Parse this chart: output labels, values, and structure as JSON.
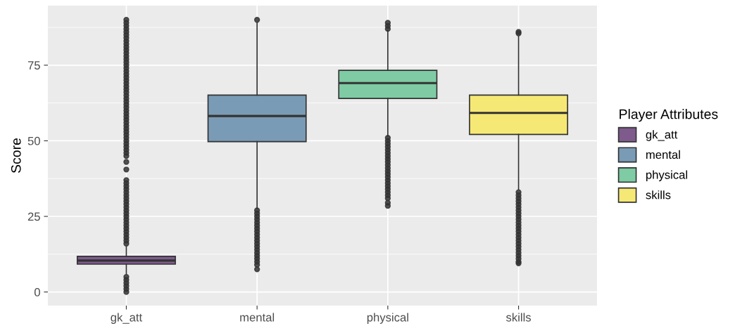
{
  "chart_data": {
    "type": "box",
    "ylabel": "Score",
    "legend_title": "Player Attributes",
    "legend": "right",
    "grid": true,
    "categories": [
      "gk_att",
      "mental",
      "physical",
      "skills"
    ],
    "ylim": [
      -4.5,
      94.7
    ],
    "yticks": [
      0,
      25,
      50,
      75
    ],
    "series": [
      {
        "name": "gk_att",
        "color": "#7e5b8c",
        "boxes": [
          {
            "low": 6,
            "q1": 9.2,
            "median": 10.4,
            "q3": 11.8,
            "high": 15,
            "outliers": [
              0,
              1,
              2,
              3,
              4,
              5,
              16,
              17,
              18,
              19,
              20,
              21,
              22,
              23,
              24,
              25,
              26,
              27,
              28,
              29,
              30,
              31,
              32,
              33,
              34,
              35,
              36,
              37,
              40.5,
              43,
              45,
              46,
              47,
              48,
              49,
              50,
              51,
              52,
              53,
              54,
              55,
              56,
              57,
              58,
              59,
              60,
              61,
              62,
              63,
              64,
              65,
              66,
              67,
              68,
              69,
              70,
              71,
              72,
              73,
              74,
              75,
              76,
              77,
              78,
              79,
              80,
              81,
              82,
              83,
              84,
              85,
              86,
              87,
              88,
              89,
              90
            ]
          },
          null,
          null,
          null
        ]
      },
      {
        "name": "mental",
        "color": "#7a9bb5",
        "boxes": [
          null,
          {
            "low": 27.5,
            "q1": 49.7,
            "median": 58.2,
            "q3": 65.1,
            "high": 89,
            "outliers": [
              7.5,
              9,
              10,
              11,
              12,
              13,
              14,
              15,
              16,
              17,
              18,
              19,
              20,
              21,
              22,
              23,
              24,
              25,
              26,
              27,
              90
            ]
          },
          null,
          null
        ]
      },
      {
        "name": "physical",
        "color": "#7ecba4",
        "boxes": [
          null,
          null,
          {
            "low": 51.5,
            "q1": 64.0,
            "median": 69.1,
            "q3": 73.3,
            "high": 86.5,
            "outliers": [
              28.5,
              29.5,
              31,
              32,
              33,
              34,
              35,
              36,
              37,
              38,
              39,
              40,
              41,
              42,
              43,
              44,
              45,
              46,
              47,
              48,
              49,
              50,
              51,
              87,
              88,
              89
            ]
          },
          null
        ]
      },
      {
        "name": "skills",
        "color": "#f6e874",
        "boxes": [
          null,
          null,
          null,
          {
            "low": 34,
            "q1": 52.1,
            "median": 59.2,
            "q3": 65.1,
            "high": 84.5,
            "outliers": [
              9.5,
              10,
              11,
              12,
              13,
              14,
              15,
              16,
              17,
              18,
              19,
              20,
              21,
              22,
              23,
              24,
              25,
              26,
              27,
              28,
              29,
              30,
              31,
              32,
              33,
              85.5,
              86
            ]
          }
        ]
      }
    ]
  }
}
